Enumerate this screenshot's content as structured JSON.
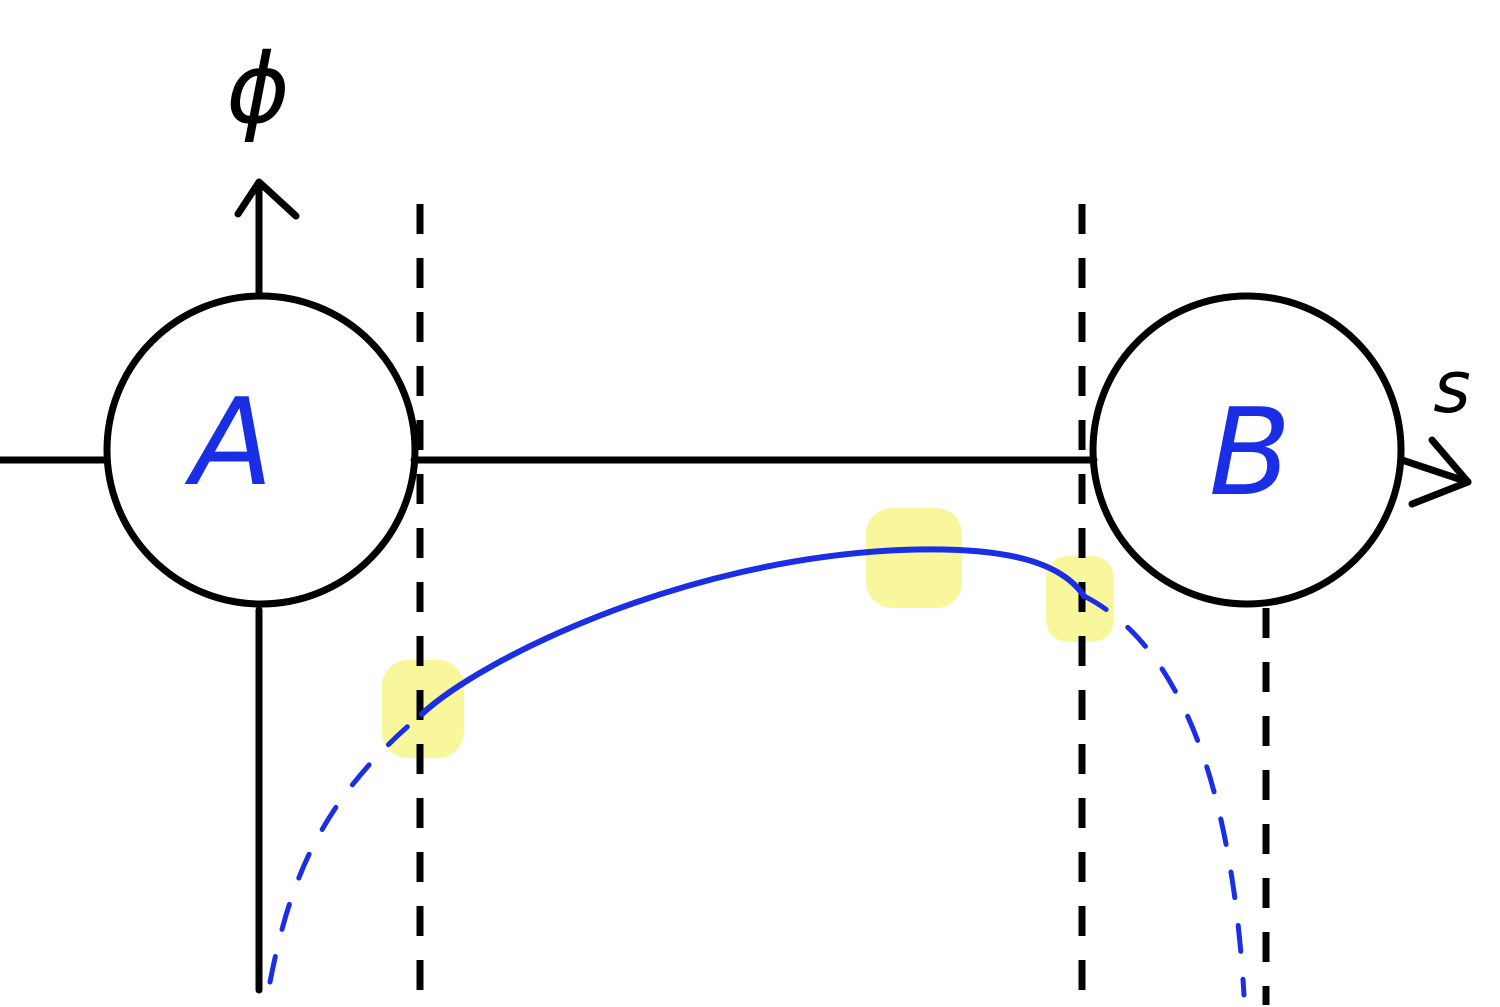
{
  "labels": {
    "axis_vertical": "ϕ",
    "axis_horizontal": "s",
    "node_a": "A",
    "node_b": "B"
  },
  "colors": {
    "ink": "#000000",
    "label": "#1a2ee6",
    "curve": "#1a2ee6",
    "highlight": "#f2f04a"
  }
}
